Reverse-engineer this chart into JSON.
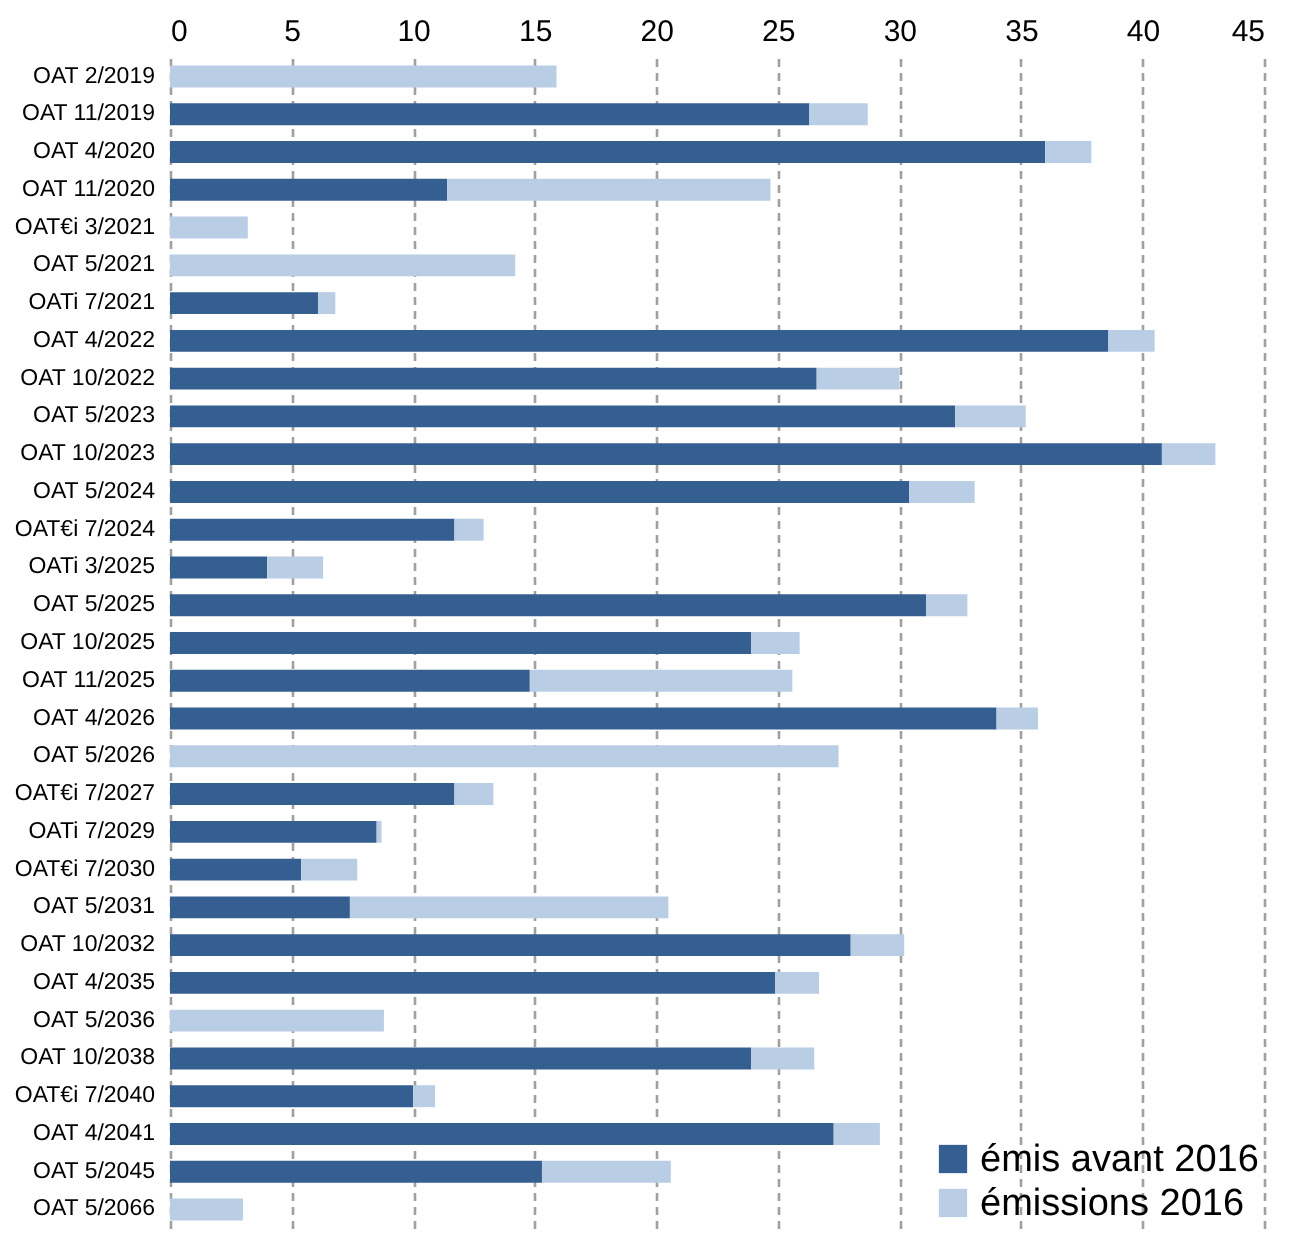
{
  "chart_data": {
    "type": "bar",
    "orientation": "horizontal",
    "stacked": true,
    "categories": [
      "OAT 2/2019",
      "OAT 11/2019",
      "OAT 4/2020",
      "OAT 11/2020",
      "OAT€i 3/2021",
      "OAT 5/2021",
      "OATi 7/2021",
      "OAT 4/2022",
      "OAT 10/2022",
      "OAT 5/2023",
      "OAT 10/2023",
      "OAT 5/2024",
      "OAT€i 7/2024",
      "OATi 3/2025",
      "OAT 5/2025",
      "OAT 10/2025",
      "OAT 11/2025",
      "OAT 4/2026",
      "OAT 5/2026",
      "OAT€i 7/2027",
      "OATi 7/2029",
      "OAT€i 7/2030",
      "OAT 5/2031",
      "OAT 10/2032",
      "OAT 4/2035",
      "OAT 5/2036",
      "OAT 10/2038",
      "OAT€i 7/2040",
      "OAT 4/2041",
      "OAT 5/2045",
      "OAT 5/2066"
    ],
    "series": [
      {
        "name": "émis avant 2016",
        "color": "#365f91",
        "values": [
          null,
          26.3,
          36.0,
          11.4,
          null,
          null,
          6.1,
          38.6,
          26.6,
          32.3,
          40.8,
          30.4,
          11.7,
          4.0,
          31.1,
          23.9,
          14.8,
          34.0,
          null,
          11.7,
          8.5,
          5.4,
          7.4,
          28.0,
          24.9,
          null,
          23.9,
          10.0,
          27.3,
          15.3,
          null
        ]
      },
      {
        "name": "émissions 2016",
        "color": "#b9cde5",
        "values": [
          15.9,
          2.4,
          1.9,
          13.3,
          3.2,
          14.2,
          0.7,
          1.9,
          3.4,
          2.9,
          2.2,
          2.7,
          1.2,
          2.3,
          1.7,
          2.0,
          10.8,
          1.7,
          27.5,
          1.6,
          0.2,
          2.3,
          13.1,
          2.2,
          1.8,
          8.8,
          2.6,
          0.9,
          1.9,
          5.3,
          3.0
        ]
      }
    ],
    "xlim": [
      0,
      45
    ],
    "xticks": [
      0,
      5,
      10,
      15,
      20,
      25,
      30,
      35,
      40,
      45
    ],
    "grid": "x",
    "legend": "bottom right"
  }
}
